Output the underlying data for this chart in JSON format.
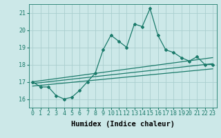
{
  "xlabel": "Humidex (Indice chaleur)",
  "background_color": "#cce8e8",
  "grid_color": "#aacece",
  "line_color": "#1a7a6a",
  "xlim": [
    -0.5,
    23.5
  ],
  "ylim": [
    15.5,
    21.5
  ],
  "yticks": [
    16,
    17,
    18,
    19,
    20,
    21
  ],
  "xticks": [
    0,
    1,
    2,
    3,
    4,
    5,
    6,
    7,
    8,
    9,
    10,
    11,
    12,
    13,
    14,
    15,
    16,
    17,
    18,
    19,
    20,
    21,
    22,
    23
  ],
  "main_line_x": [
    0,
    1,
    2,
    3,
    4,
    5,
    6,
    7,
    8,
    9,
    10,
    11,
    12,
    13,
    14,
    15,
    16,
    17,
    18,
    19,
    20,
    21,
    22,
    23
  ],
  "main_line_y": [
    17.0,
    16.7,
    16.7,
    16.2,
    16.0,
    16.1,
    16.5,
    17.0,
    17.5,
    18.85,
    19.7,
    19.35,
    19.0,
    20.35,
    20.2,
    21.25,
    19.7,
    18.85,
    18.7,
    18.4,
    18.2,
    18.45,
    18.0,
    18.0
  ],
  "upper_line_x": [
    0,
    23
  ],
  "upper_line_y": [
    17.0,
    18.4
  ],
  "middle_line_x": [
    0,
    23
  ],
  "middle_line_y": [
    16.9,
    18.05
  ],
  "lower_line_x": [
    0,
    23
  ],
  "lower_line_y": [
    16.75,
    17.75
  ],
  "font_size_ticks": 6,
  "font_size_label": 7.5
}
